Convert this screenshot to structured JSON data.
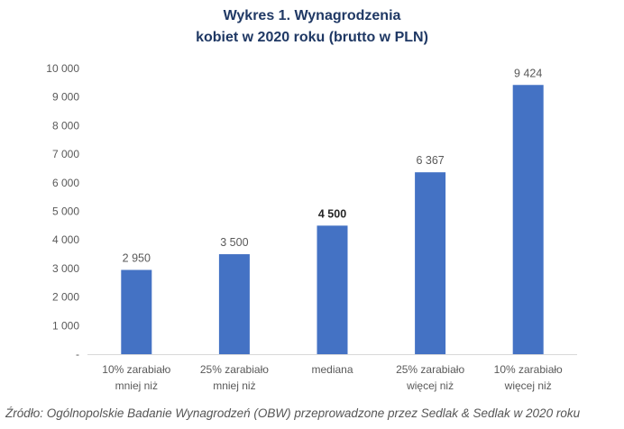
{
  "chart_data": {
    "type": "bar",
    "title": [
      "Wykres 1. Wynagrodzenia",
      "kobiet w 2020 roku (brutto w PLN)"
    ],
    "categories": [
      [
        "10% zarabiało",
        "mniej niż"
      ],
      [
        "25% zarabiało",
        "mniej niż"
      ],
      [
        "mediana"
      ],
      [
        "25% zarabiało",
        "więcej niż"
      ],
      [
        "10% zarabiało",
        "więcej niż"
      ]
    ],
    "values": [
      2950,
      3500,
      4500,
      6367,
      9424
    ],
    "data_labels": [
      "2 950",
      "3 500",
      "4 500",
      "6 367",
      "9 424"
    ],
    "bold_label_index": 2,
    "ylim": [
      0,
      10000
    ],
    "yticks": [
      0,
      1000,
      2000,
      3000,
      4000,
      5000,
      6000,
      7000,
      8000,
      9000,
      10000
    ],
    "ytick_labels": [
      "-",
      "1 000",
      "2 000",
      "3 000",
      "4 000",
      "5 000",
      "6 000",
      "7 000",
      "8 000",
      "9 000",
      "10 000"
    ],
    "grid": false,
    "legend": false,
    "bar_color": "#4472c4",
    "axis_color": "#d9d9d9",
    "text_color": "#595959"
  },
  "source": "Źródło: Ogólnopolskie Badanie Wynagrodzeń (OBW) przeprowadzone przez Sedlak & Sedlak w 2020 roku"
}
